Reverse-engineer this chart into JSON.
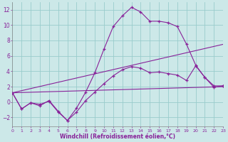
{
  "xlabel": "Windchill (Refroidissement éolien,°C)",
  "bg_color": "#cce8e8",
  "line_color": "#882299",
  "grid_color": "#99cccc",
  "xlim": [
    0,
    23
  ],
  "ylim": [
    -3.2,
    13.0
  ],
  "yticks": [
    -2,
    0,
    2,
    4,
    6,
    8,
    10,
    12
  ],
  "xticks": [
    0,
    1,
    2,
    3,
    4,
    5,
    6,
    7,
    8,
    9,
    10,
    11,
    12,
    13,
    14,
    15,
    16,
    17,
    18,
    19,
    20,
    21,
    22,
    23
  ],
  "series1_x": [
    0,
    1,
    2,
    3,
    4,
    5,
    6,
    7,
    8,
    9,
    10,
    11,
    12,
    13,
    14,
    15,
    16,
    17,
    18,
    19,
    20,
    21,
    22,
    23
  ],
  "series1_y": [
    1.2,
    -0.9,
    -0.1,
    -0.5,
    0.2,
    -1.2,
    -2.4,
    -0.8,
    1.3,
    3.8,
    6.9,
    9.8,
    11.2,
    12.3,
    11.7,
    10.5,
    10.5,
    10.3,
    9.8,
    7.5,
    4.8,
    3.2,
    2.1,
    2.1
  ],
  "series2_x": [
    0,
    1,
    2,
    3,
    4,
    5,
    6,
    7,
    8,
    9,
    10,
    11,
    12,
    13,
    14,
    15,
    16,
    17,
    18,
    19,
    20,
    21,
    22,
    23
  ],
  "series2_y": [
    1.2,
    -0.9,
    -0.1,
    -0.3,
    0.1,
    -1.3,
    -2.4,
    -1.3,
    0.2,
    1.3,
    2.4,
    3.4,
    4.2,
    4.6,
    4.4,
    3.8,
    3.9,
    3.7,
    3.5,
    2.8,
    4.7,
    3.2,
    1.9,
    2.1
  ],
  "line3_x": [
    0,
    23
  ],
  "line3_y": [
    1.2,
    2.0
  ],
  "line4_x": [
    0,
    23
  ],
  "line4_y": [
    1.2,
    7.5
  ]
}
